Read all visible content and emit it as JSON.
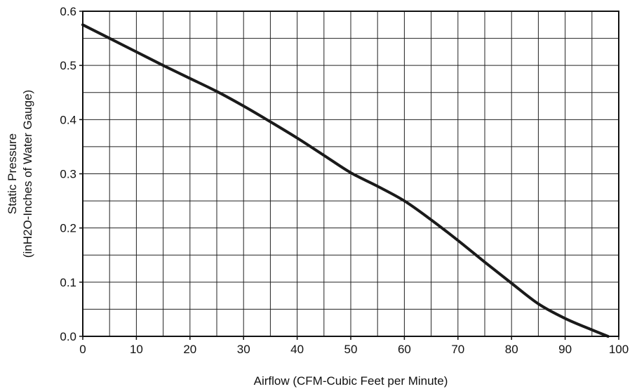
{
  "chart_data": {
    "type": "line",
    "title": "",
    "xlabel": "Airflow (CFM-Cubic Feet per Minute)",
    "ylabel_lines": [
      "Static Pressure",
      "(inH2O-Inches of Water Gauge)"
    ],
    "xlim": [
      0,
      100
    ],
    "ylim": [
      0,
      0.6
    ],
    "x_ticks": [
      "0",
      "10",
      "20",
      "30",
      "40",
      "50",
      "60",
      "70",
      "80",
      "90",
      "100"
    ],
    "y_ticks": [
      "0.0",
      "0.1",
      "0.2",
      "0.3",
      "0.4",
      "0.5",
      "0.6"
    ],
    "x_tick_values": [
      0,
      10,
      20,
      30,
      40,
      50,
      60,
      70,
      80,
      90,
      100
    ],
    "y_tick_values": [
      0,
      0.1,
      0.2,
      0.3,
      0.4,
      0.5,
      0.6
    ],
    "grid": true,
    "x_grid_step": 5,
    "y_grid_step": 0.05,
    "line_color": "#1a1a1a",
    "series": [
      {
        "x": [
          0,
          5,
          10,
          15,
          20,
          25,
          30,
          35,
          40,
          45,
          50,
          55,
          60,
          65,
          70,
          75,
          80,
          85,
          90,
          95,
          98
        ],
        "y": [
          0.575,
          0.55,
          0.525,
          0.5,
          0.476,
          0.452,
          0.425,
          0.396,
          0.366,
          0.334,
          0.302,
          0.277,
          0.25,
          0.215,
          0.177,
          0.137,
          0.098,
          0.06,
          0.033,
          0.012,
          0.0
        ]
      }
    ]
  }
}
